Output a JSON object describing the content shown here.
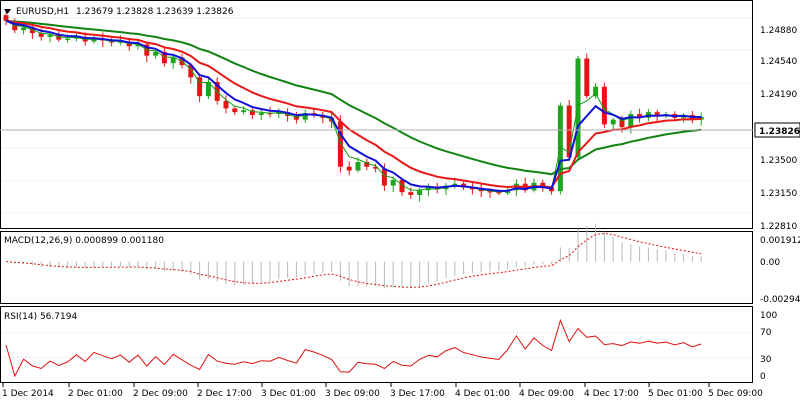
{
  "header": {
    "symbol": "EURUSD,H1",
    "ohlc": "1.23679 1.23828 1.23639 1.23826"
  },
  "colors": {
    "bull": "#1fa51f",
    "bear": "#e51515",
    "ema_fast": "#1010d8",
    "ema_mid": "#e81818",
    "ema_slow": "#128212",
    "ema_thin": "#10a010",
    "macd_hist": "#b8b8b8",
    "macd_signal": "#e01010",
    "rsi": "#e01010",
    "grid": "#d0d0d0",
    "frame": "#000000"
  },
  "price_panel": {
    "y_ticks": [
      "1.24880",
      "1.24540",
      "1.24190",
      "1.23850",
      "1.23500",
      "1.23150",
      "1.22810"
    ],
    "current_price": "1.23826"
  },
  "macd_panel": {
    "title": "MACD(12,26,9) 0.000899 0.001180",
    "y_ticks": [
      "0.001912",
      "0.00",
      "-0.00294"
    ]
  },
  "rsi_panel": {
    "title": "RSI(14) 56.7194",
    "y_ticks": [
      "100",
      "70",
      "30",
      "0"
    ]
  },
  "x_axis": {
    "labels": [
      "1 Dec 2014",
      "2 Dec 01:00",
      "2 Dec 09:00",
      "2 Dec 17:00",
      "3 Dec 01:00",
      "3 Dec 09:00",
      "3 Dec 17:00",
      "4 Dec 01:00",
      "4 Dec 09:00",
      "4 Dec 17:00",
      "5 Dec 01:00",
      "5 Dec 09:00"
    ]
  },
  "chart_data": [
    {
      "type": "candlestick",
      "title": "EURUSD,H1",
      "ylim": [
        1.2266,
        1.2505
      ],
      "current_price": 1.23826,
      "ohlc_close_series": [
        1.2485,
        1.2475,
        1.2478,
        1.2472,
        1.2468,
        1.247,
        1.2465,
        1.2466,
        1.2468,
        1.2463,
        1.2466,
        1.2464,
        1.2462,
        1.2463,
        1.2458,
        1.246,
        1.2448,
        1.2452,
        1.244,
        1.2446,
        1.2438,
        1.2425,
        1.2405,
        1.242,
        1.24,
        1.2392,
        1.2388,
        1.239,
        1.2385,
        1.2387,
        1.2386,
        1.2388,
        1.2384,
        1.238,
        1.2387,
        1.2385,
        1.2382,
        1.2378,
        1.233,
        1.2326,
        1.2335,
        1.233,
        1.2328,
        1.231,
        1.2316,
        1.2303,
        1.23,
        1.2305,
        1.2308,
        1.2306,
        1.231,
        1.2312,
        1.2308,
        1.2306,
        1.2304,
        1.2303,
        1.2302,
        1.2305,
        1.2312,
        1.2305,
        1.2313,
        1.2308,
        1.2304,
        1.2395,
        1.234,
        1.2445,
        1.2405,
        1.2415,
        1.2375,
        1.238,
        1.2372,
        1.2386,
        1.2382,
        1.2388,
        1.2384,
        1.2386,
        1.2382,
        1.2385,
        1.238,
        1.2383
      ],
      "indicators": [
        "EMA fast",
        "EMA mid",
        "EMA slow"
      ]
    },
    {
      "type": "bar",
      "title": "MACD(12,26,9)",
      "series": [
        {
          "name": "MACD",
          "value": 0.000899
        },
        {
          "name": "Signal",
          "value": 0.00118
        }
      ],
      "ylim": [
        -0.00294,
        0.001912
      ]
    },
    {
      "type": "line",
      "title": "RSI(14)",
      "series": [
        {
          "name": "RSI(14)",
          "value": 56.7194
        }
      ],
      "levels": [
        70,
        30
      ],
      "ylim": [
        0,
        100
      ]
    }
  ]
}
